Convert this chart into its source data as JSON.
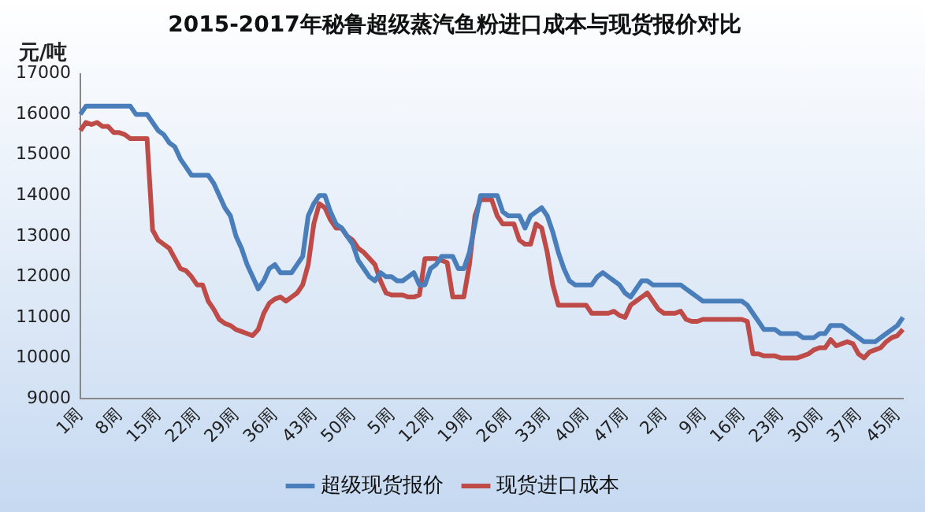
{
  "chart_data": {
    "type": "line",
    "title": "2015-2017年秘鲁超级蒸汽鱼粉进口成本与现货报价对比",
    "ylabel": "元/吨",
    "categories": [
      "1周",
      null,
      null,
      null,
      null,
      null,
      null,
      "8周",
      null,
      null,
      null,
      null,
      null,
      null,
      "15周",
      null,
      null,
      null,
      null,
      null,
      null,
      "22周",
      null,
      null,
      null,
      null,
      null,
      null,
      "29周",
      null,
      null,
      null,
      null,
      null,
      null,
      "36周",
      null,
      null,
      null,
      null,
      null,
      null,
      "43周",
      null,
      null,
      null,
      null,
      null,
      null,
      "50周",
      null,
      null,
      null,
      null,
      null,
      null,
      "5周",
      null,
      null,
      null,
      null,
      null,
      null,
      "12周",
      null,
      null,
      null,
      null,
      null,
      null,
      "19周",
      null,
      null,
      null,
      null,
      null,
      null,
      "26周",
      null,
      null,
      null,
      null,
      null,
      null,
      "33周",
      null,
      null,
      null,
      null,
      null,
      null,
      "40周",
      null,
      null,
      null,
      null,
      null,
      null,
      "47周",
      null,
      null,
      null,
      null,
      null,
      null,
      "2周",
      null,
      null,
      null,
      null,
      null,
      null,
      "9周",
      null,
      null,
      null,
      null,
      null,
      null,
      "16周",
      null,
      null,
      null,
      null,
      null,
      null,
      "23周",
      null,
      null,
      null,
      null,
      null,
      null,
      "30周",
      null,
      null,
      null,
      null,
      null,
      null,
      "37周",
      null,
      null,
      null,
      null,
      null,
      null,
      "45周",
      null
    ],
    "series": [
      {
        "name": "超级现货报价",
        "color": "#4a7ebb",
        "values": [
          16000,
          16200,
          16200,
          16200,
          16200,
          16200,
          16200,
          16200,
          16200,
          16200,
          16000,
          16000,
          16000,
          15800,
          15600,
          15500,
          15300,
          15200,
          14900,
          14700,
          14500,
          14500,
          14500,
          14500,
          14300,
          14000,
          13700,
          13500,
          13000,
          12700,
          12300,
          12000,
          11700,
          11900,
          12200,
          12300,
          12100,
          12100,
          12100,
          12300,
          12500,
          13500,
          13800,
          14000,
          14000,
          13600,
          13300,
          13200,
          13000,
          12800,
          12400,
          12200,
          12000,
          11900,
          12100,
          12000,
          12000,
          11900,
          11900,
          12000,
          12100,
          11800,
          11800,
          12200,
          12300,
          12500,
          12500,
          12500,
          12200,
          12200,
          12600,
          13300,
          14000,
          14000,
          14000,
          14000,
          13600,
          13500,
          13500,
          13500,
          13200,
          13500,
          13600,
          13700,
          13500,
          13100,
          12600,
          12200,
          11900,
          11800,
          11800,
          11800,
          11800,
          12000,
          12100,
          12000,
          11900,
          11800,
          11600,
          11500,
          11700,
          11900,
          11900,
          11800,
          11800,
          11800,
          11800,
          11800,
          11800,
          11700,
          11600,
          11500,
          11400,
          11400,
          11400,
          11400,
          11400,
          11400,
          11400,
          11400,
          11300,
          11100,
          10900,
          10700,
          10700,
          10700,
          10600,
          10600,
          10600,
          10600,
          10500,
          10500,
          10500,
          10600,
          10600,
          10800,
          10800,
          10800,
          10700,
          10600,
          10500,
          10400,
          10400,
          10400,
          10500,
          10600,
          10700,
          10800,
          11000
        ]
      },
      {
        "name": "现货进口成本",
        "color": "#be4b48",
        "values": [
          15600,
          15800,
          15750,
          15800,
          15700,
          15700,
          15550,
          15550,
          15500,
          15400,
          15400,
          15400,
          15400,
          13150,
          12900,
          12800,
          12700,
          12450,
          12200,
          12150,
          12000,
          11800,
          11800,
          11400,
          11200,
          10950,
          10850,
          10800,
          10700,
          10650,
          10600,
          10550,
          10700,
          11100,
          11350,
          11450,
          11500,
          11400,
          11500,
          11600,
          11800,
          12300,
          13300,
          13800,
          13700,
          13400,
          13200,
          13200,
          13000,
          12900,
          12700,
          12600,
          12450,
          12300,
          11900,
          11600,
          11550,
          11550,
          11550,
          11500,
          11500,
          11550,
          12450,
          12450,
          12450,
          12400,
          12350,
          11500,
          11500,
          11500,
          12300,
          13500,
          13900,
          13900,
          13900,
          13500,
          13300,
          13300,
          13300,
          12900,
          12800,
          12800,
          13300,
          13200,
          12600,
          11800,
          11300,
          11300,
          11300,
          11300,
          11300,
          11300,
          11100,
          11100,
          11100,
          11100,
          11150,
          11050,
          11000,
          11300,
          11400,
          11500,
          11600,
          11400,
          11200,
          11100,
          11100,
          11100,
          11150,
          10950,
          10900,
          10900,
          10950,
          10950,
          10950,
          10950,
          10950,
          10950,
          10950,
          10950,
          10900,
          10100,
          10100,
          10050,
          10050,
          10050,
          10000,
          10000,
          10000,
          10000,
          10050,
          10100,
          10200,
          10250,
          10250,
          10450,
          10300,
          10350,
          10400,
          10350,
          10100,
          10000,
          10150,
          10200,
          10250,
          10400,
          10500,
          10550,
          10700
        ]
      }
    ],
    "ylim": [
      9000,
      17000
    ],
    "yticks": [
      9000,
      10000,
      11000,
      12000,
      13000,
      14000,
      15000,
      16000,
      17000
    ],
    "grid": false,
    "legend": "bottom",
    "marker": "none",
    "line_style": "solid"
  }
}
